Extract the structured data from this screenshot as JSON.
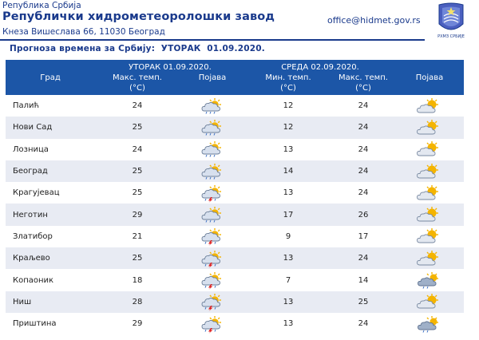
{
  "header": {
    "republic": "Република Србија",
    "institute": "Републички хидрометеоролошки завод",
    "address": "Кнеза Вишеслава 66, 11030 Београд",
    "email": "office@hidmet.gov.rs",
    "logo_text": "РХМЗ СРБИЈЕ"
  },
  "forecast_title": "Прогноза времена за Србију:  УТОРАК  01.09.2020.",
  "table": {
    "headers": {
      "day1": "УТОРАК  01.09.2020.",
      "day2": "СРЕДА  02.09.2020.",
      "city": "Град",
      "max_temp": "Макс. темп.",
      "min_temp": "Мин. темп.",
      "unit": "(°C)",
      "phenomena": "Појава"
    },
    "rows": [
      {
        "city": "Палић",
        "d1_max": "24",
        "d1_icon": "partly-cloudy-rain-icon",
        "d2_min": "12",
        "d2_max": "24",
        "d2_icon": "partly-cloudy-sun-icon"
      },
      {
        "city": "Нови Сад",
        "d1_max": "25",
        "d1_icon": "partly-cloudy-rain-icon",
        "d2_min": "12",
        "d2_max": "24",
        "d2_icon": "partly-cloudy-sun-icon"
      },
      {
        "city": "Лозница",
        "d1_max": "24",
        "d1_icon": "partly-cloudy-rain-icon",
        "d2_min": "13",
        "d2_max": "24",
        "d2_icon": "partly-cloudy-sun-icon"
      },
      {
        "city": "Београд",
        "d1_max": "25",
        "d1_icon": "partly-cloudy-rain-icon",
        "d2_min": "14",
        "d2_max": "24",
        "d2_icon": "partly-cloudy-sun-icon"
      },
      {
        "city": "Крагујевац",
        "d1_max": "25",
        "d1_icon": "thunderstorm-icon",
        "d2_min": "13",
        "d2_max": "24",
        "d2_icon": "partly-cloudy-sun-icon"
      },
      {
        "city": "Неготин",
        "d1_max": "29",
        "d1_icon": "partly-cloudy-rain-icon",
        "d2_min": "17",
        "d2_max": "26",
        "d2_icon": "partly-cloudy-sun-icon"
      },
      {
        "city": "Златибор",
        "d1_max": "21",
        "d1_icon": "thunderstorm-icon",
        "d2_min": "9",
        "d2_max": "17",
        "d2_icon": "partly-cloudy-sun-icon"
      },
      {
        "city": "Краљево",
        "d1_max": "25",
        "d1_icon": "thunderstorm-icon",
        "d2_min": "13",
        "d2_max": "24",
        "d2_icon": "partly-cloudy-sun-icon"
      },
      {
        "city": "Копаоник",
        "d1_max": "18",
        "d1_icon": "thunderstorm-icon",
        "d2_min": "7",
        "d2_max": "14",
        "d2_icon": "cloudy-sun-rain-icon"
      },
      {
        "city": "Ниш",
        "d1_max": "28",
        "d1_icon": "thunderstorm-icon",
        "d2_min": "13",
        "d2_max": "25",
        "d2_icon": "partly-cloudy-sun-icon"
      },
      {
        "city": "Приштина",
        "d1_max": "29",
        "d1_icon": "thunderstorm-icon",
        "d2_min": "13",
        "d2_max": "24",
        "d2_icon": "cloudy-sun-rain-icon"
      }
    ]
  },
  "colors": {
    "brand": "#1a3a8c",
    "header_bg": "#1c56a7",
    "row_alt": "#e8ebf3",
    "sun": "#f4b400",
    "cloud": "#9fb0c8",
    "lightning": "#e02020"
  }
}
